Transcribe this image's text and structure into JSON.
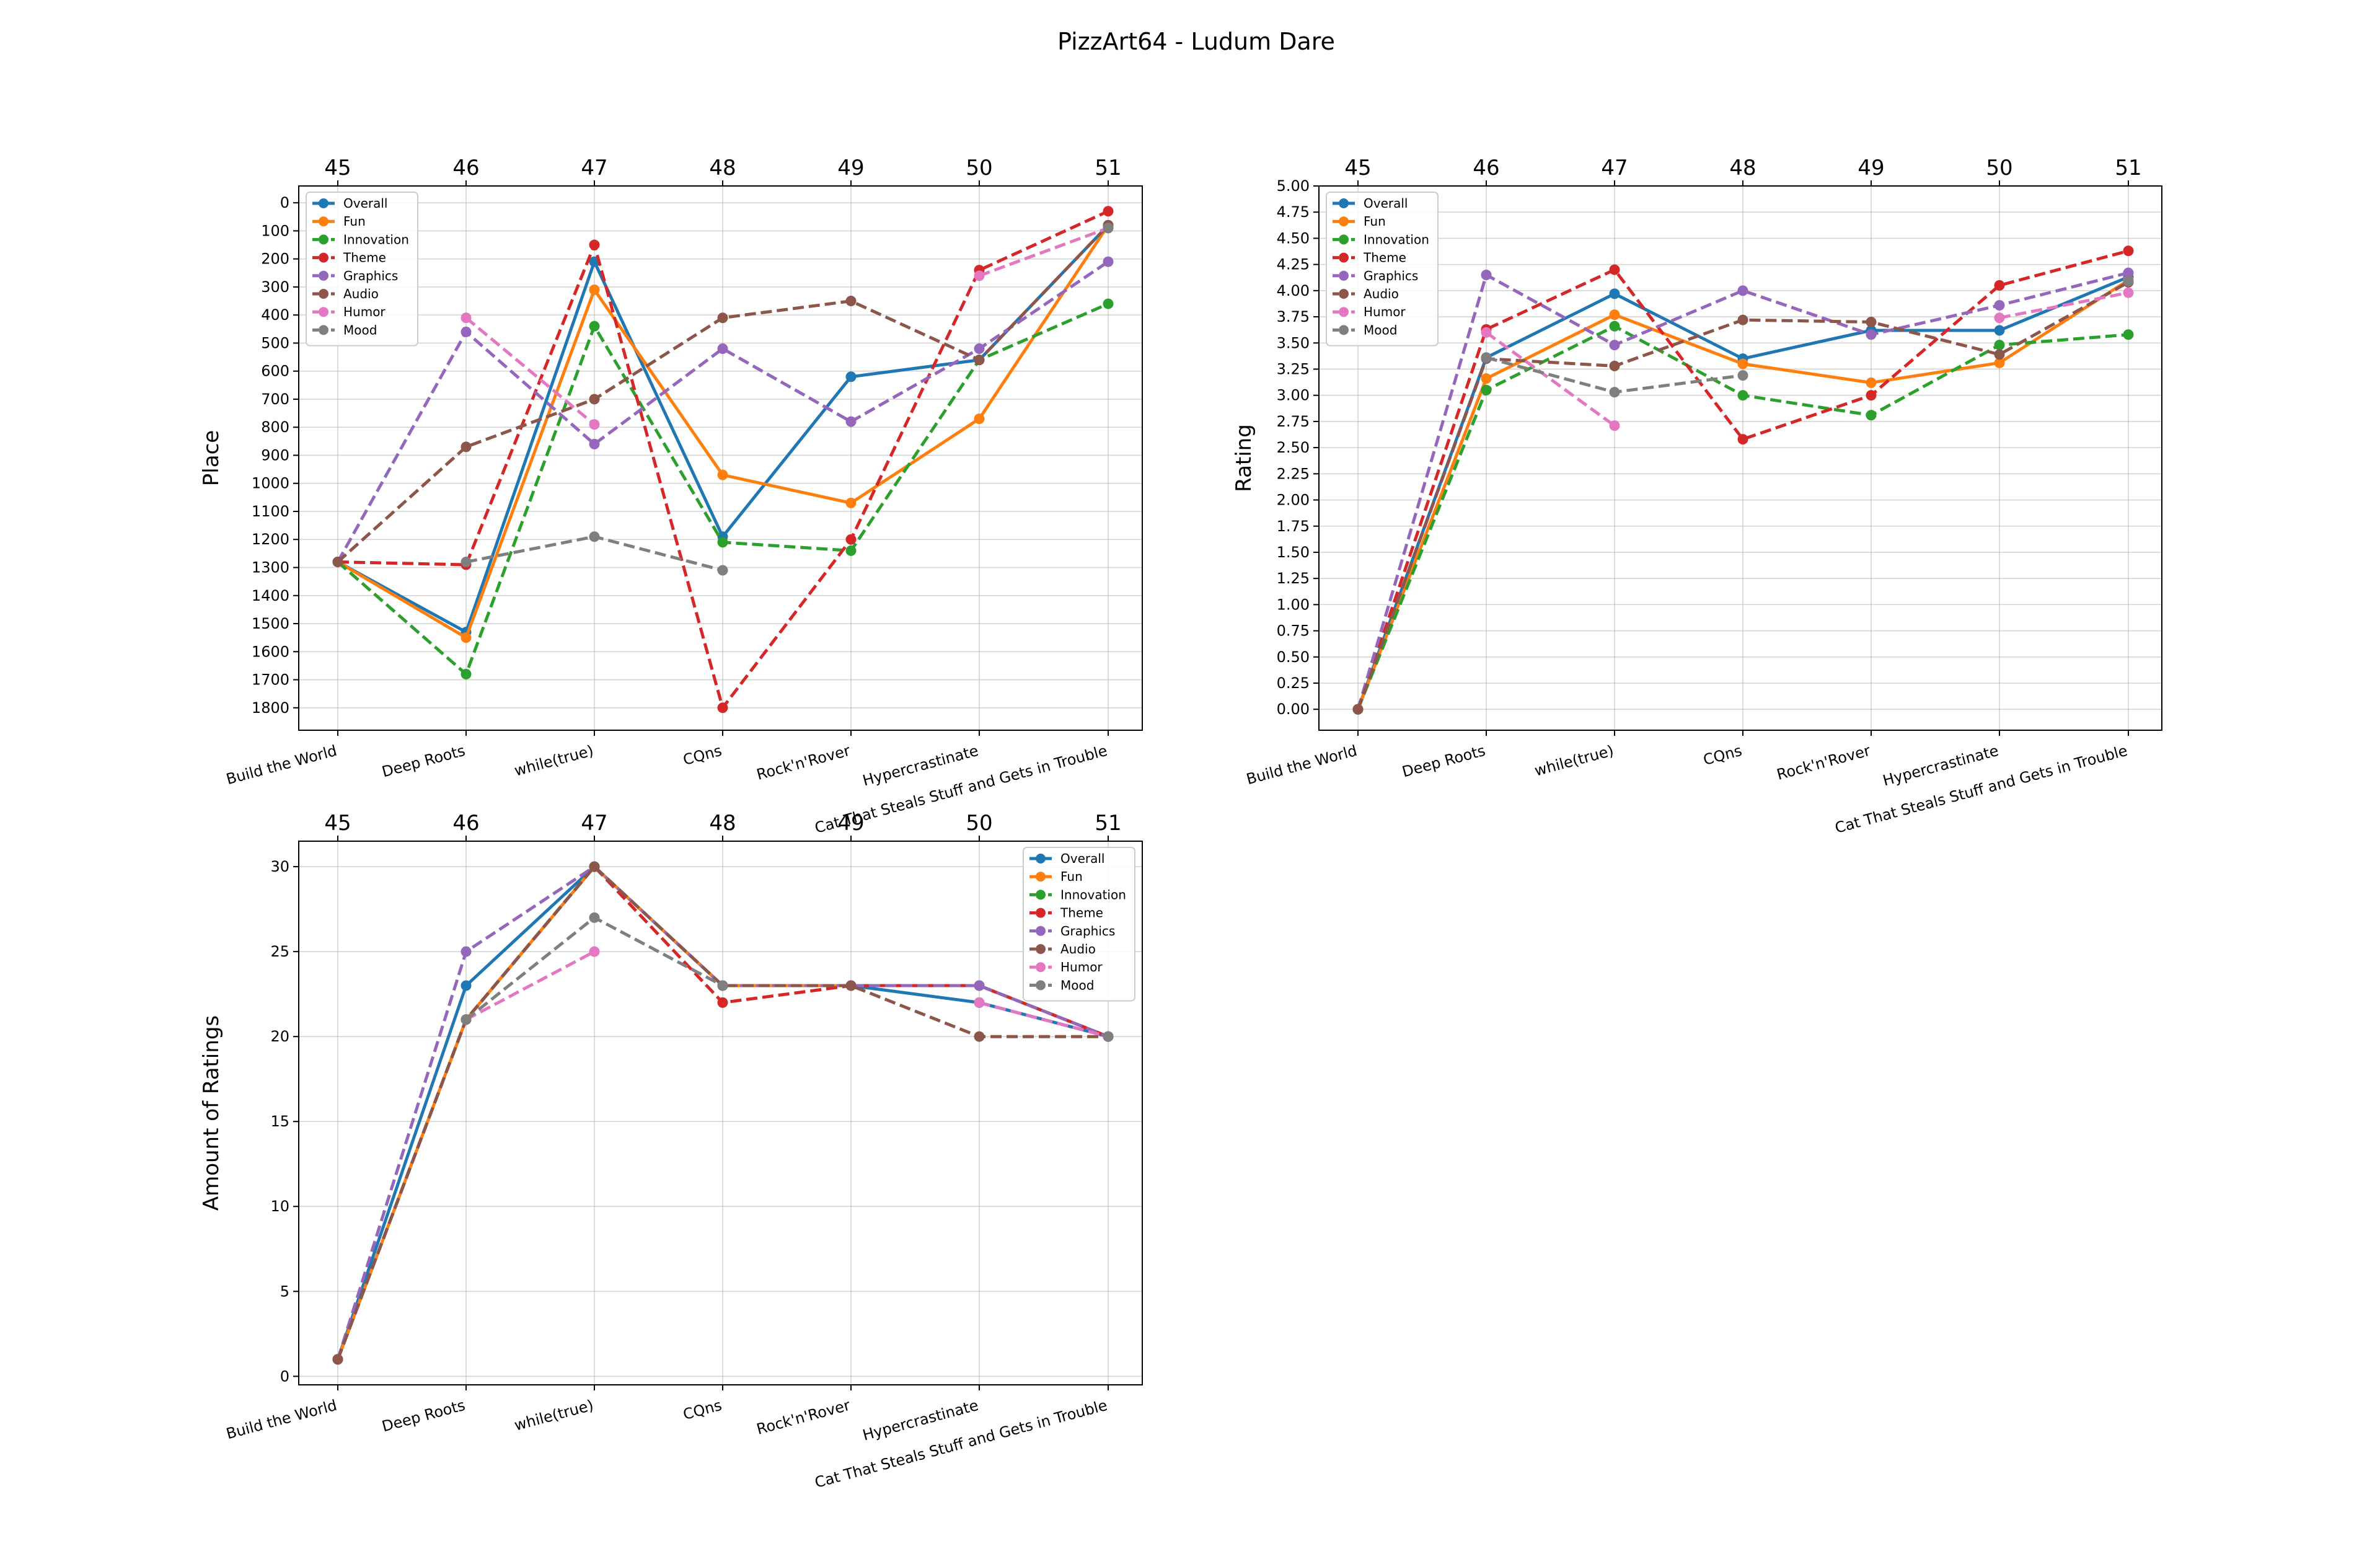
{
  "figure": {
    "title": "PizzArt64 - Ludum Dare"
  },
  "series_style": [
    {
      "name": "Overall",
      "color": "#1f77b4",
      "dash": "solid"
    },
    {
      "name": "Fun",
      "color": "#ff7f0e",
      "dash": "solid"
    },
    {
      "name": "Innovation",
      "color": "#2ca02c",
      "dash": "dashed"
    },
    {
      "name": "Theme",
      "color": "#d62728",
      "dash": "dashed"
    },
    {
      "name": "Graphics",
      "color": "#9467bd",
      "dash": "dashed"
    },
    {
      "name": "Audio",
      "color": "#8c564b",
      "dash": "dashed"
    },
    {
      "name": "Humor",
      "color": "#e377c2",
      "dash": "dashed"
    },
    {
      "name": "Mood",
      "color": "#7f7f7f",
      "dash": "dashed"
    }
  ],
  "chart_data": [
    {
      "type": "line",
      "ylabel": "Place",
      "inverted_y": true,
      "ylim": [
        -60,
        1880
      ],
      "yticks": [
        0,
        100,
        200,
        300,
        400,
        500,
        600,
        700,
        800,
        900,
        1000,
        1100,
        1200,
        1300,
        1400,
        1500,
        1600,
        1700,
        1800
      ],
      "categories": [
        "Build the World",
        "Deep Roots",
        "while(true)",
        "CQns",
        "Rock'n'Rover",
        "Hypercrastinate",
        "Cat That Steals Stuff and Gets in Trouble"
      ],
      "top_ticks": [
        "45",
        "46",
        "47",
        "48",
        "49",
        "50",
        "51"
      ],
      "legend": "upper-left",
      "grid": true,
      "series": [
        {
          "name": "Overall",
          "values": [
            1280,
            1530,
            210,
            1190,
            620,
            560,
            80
          ]
        },
        {
          "name": "Fun",
          "values": [
            1280,
            1550,
            310,
            970,
            1070,
            770,
            80
          ]
        },
        {
          "name": "Innovation",
          "values": [
            1280,
            1680,
            440,
            1210,
            1240,
            560,
            360
          ]
        },
        {
          "name": "Theme",
          "values": [
            1280,
            1290,
            150,
            1800,
            1200,
            240,
            30
          ]
        },
        {
          "name": "Graphics",
          "values": [
            1280,
            460,
            860,
            520,
            780,
            520,
            210
          ]
        },
        {
          "name": "Audio",
          "values": [
            1280,
            870,
            700,
            410,
            350,
            560,
            80
          ]
        },
        {
          "name": "Humor",
          "values": [
            null,
            410,
            790,
            null,
            null,
            260,
            90
          ]
        },
        {
          "name": "Mood",
          "values": [
            null,
            1280,
            1190,
            1310,
            null,
            null,
            90
          ]
        }
      ]
    },
    {
      "type": "line",
      "ylabel": "Rating",
      "inverted_y": false,
      "ylim": [
        -0.2,
        5.0
      ],
      "yticks": [
        0.0,
        0.25,
        0.5,
        0.75,
        1.0,
        1.25,
        1.5,
        1.75,
        2.0,
        2.25,
        2.5,
        2.75,
        3.0,
        3.25,
        3.5,
        3.75,
        4.0,
        4.25,
        4.5,
        4.75,
        5.0
      ],
      "ytick_labels": [
        "0.00",
        "0.25",
        "0.50",
        "0.75",
        "1.00",
        "1.25",
        "1.50",
        "1.75",
        "2.00",
        "2.25",
        "2.50",
        "2.75",
        "3.00",
        "3.25",
        "3.50",
        "3.75",
        "4.00",
        "4.25",
        "4.50",
        "4.75",
        "5.00"
      ],
      "categories": [
        "Build the World",
        "Deep Roots",
        "while(true)",
        "CQns",
        "Rock'n'Rover",
        "Hypercrastinate",
        "Cat That Steals Stuff and Gets in Trouble"
      ],
      "top_ticks": [
        "45",
        "46",
        "47",
        "48",
        "49",
        "50",
        "51"
      ],
      "legend": "upper-left",
      "grid": true,
      "series": [
        {
          "name": "Overall",
          "values": [
            0,
            3.36,
            3.97,
            3.35,
            3.62,
            3.62,
            4.13
          ]
        },
        {
          "name": "Fun",
          "values": [
            0,
            3.16,
            3.77,
            3.3,
            3.12,
            3.31,
            4.1
          ]
        },
        {
          "name": "Innovation",
          "values": [
            0,
            3.05,
            3.66,
            3.0,
            2.81,
            3.48,
            3.58
          ]
        },
        {
          "name": "Theme",
          "values": [
            0,
            3.63,
            4.2,
            2.58,
            3.0,
            4.05,
            4.38
          ]
        },
        {
          "name": "Graphics",
          "values": [
            0,
            4.15,
            3.48,
            4.0,
            3.58,
            3.86,
            4.17
          ]
        },
        {
          "name": "Audio",
          "values": [
            0,
            3.35,
            3.28,
            3.72,
            3.7,
            3.39,
            4.08
          ]
        },
        {
          "name": "Humor",
          "values": [
            null,
            3.6,
            2.71,
            null,
            null,
            3.74,
            3.98
          ]
        },
        {
          "name": "Mood",
          "values": [
            null,
            3.36,
            3.03,
            3.19,
            null,
            null,
            4.09
          ]
        }
      ]
    },
    {
      "type": "line",
      "ylabel": "Amount of Ratings",
      "inverted_y": false,
      "ylim": [
        -0.5,
        31.5
      ],
      "yticks": [
        0,
        5,
        10,
        15,
        20,
        25,
        30
      ],
      "categories": [
        "Build the World",
        "Deep Roots",
        "while(true)",
        "CQns",
        "Rock'n'Rover",
        "Hypercrastinate",
        "Cat That Steals Stuff and Gets in Trouble"
      ],
      "top_ticks": [
        "45",
        "46",
        "47",
        "48",
        "49",
        "50",
        "51"
      ],
      "legend": "upper-right",
      "grid": true,
      "series": [
        {
          "name": "Overall",
          "values": [
            1,
            23,
            30,
            23,
            23,
            22,
            20
          ]
        },
        {
          "name": "Fun",
          "values": [
            1,
            21,
            30,
            23,
            23,
            23,
            20
          ]
        },
        {
          "name": "Innovation",
          "values": [
            1,
            21,
            30,
            23,
            23,
            23,
            20
          ]
        },
        {
          "name": "Theme",
          "values": [
            1,
            21,
            30,
            22,
            23,
            23,
            20
          ]
        },
        {
          "name": "Graphics",
          "values": [
            1,
            25,
            30,
            23,
            23,
            23,
            20
          ]
        },
        {
          "name": "Audio",
          "values": [
            1,
            21,
            30,
            23,
            23,
            20,
            20
          ]
        },
        {
          "name": "Humor",
          "values": [
            null,
            21,
            25,
            null,
            null,
            22,
            20
          ]
        },
        {
          "name": "Mood",
          "values": [
            null,
            21,
            27,
            23,
            null,
            null,
            20
          ]
        }
      ]
    }
  ]
}
